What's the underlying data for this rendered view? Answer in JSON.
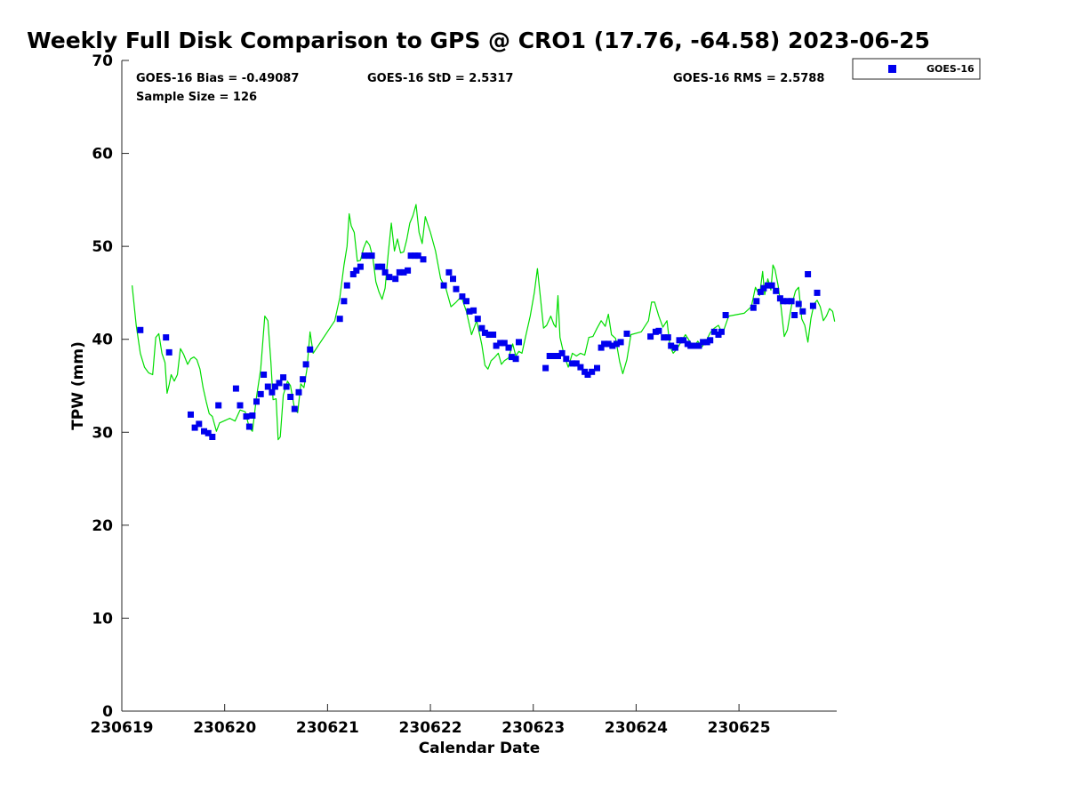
{
  "chart_data": {
    "type": "scatter",
    "title": "Weekly Full Disk Comparison to GPS @ CRO1 (17.76, -64.58) 2023-06-25",
    "xlabel": "Calendar Date",
    "ylabel": "TPW (mm)",
    "xlim": [
      0,
      6.95
    ],
    "ylim": [
      0,
      70
    ],
    "x_tick_labels": [
      "230619",
      "230620",
      "230621",
      "230622",
      "230623",
      "230624",
      "230625"
    ],
    "y_ticks": [
      0,
      10,
      20,
      30,
      40,
      50,
      60,
      70
    ],
    "grid": false,
    "legend_position": "top-right",
    "stats": {
      "bias": "GOES-16 Bias = -0.49087",
      "std": "GOES-16 StD = 2.5317",
      "rms": "GOES-16 RMS = 2.5788",
      "sample": "Sample Size = 126"
    },
    "series": [
      {
        "name": "GOES-16",
        "kind": "markers",
        "color": "#0000ee",
        "points": [
          [
            0.18,
            41
          ],
          [
            0.43,
            40.2
          ],
          [
            0.46,
            38.6
          ],
          [
            0.67,
            31.9
          ],
          [
            0.71,
            30.5
          ],
          [
            0.75,
            30.9
          ],
          [
            0.8,
            30.1
          ],
          [
            0.84,
            29.9
          ],
          [
            0.88,
            29.5
          ],
          [
            0.94,
            32.9
          ],
          [
            1.11,
            34.7
          ],
          [
            1.15,
            32.9
          ],
          [
            1.21,
            31.7
          ],
          [
            1.24,
            30.6
          ],
          [
            1.27,
            31.8
          ],
          [
            1.31,
            33.3
          ],
          [
            1.35,
            34.1
          ],
          [
            1.38,
            36.2
          ],
          [
            1.42,
            34.9
          ],
          [
            1.46,
            34.3
          ],
          [
            1.49,
            34.9
          ],
          [
            1.53,
            35.3
          ],
          [
            1.57,
            35.9
          ],
          [
            1.6,
            34.9
          ],
          [
            1.64,
            33.8
          ],
          [
            1.68,
            32.5
          ],
          [
            1.72,
            34.3
          ],
          [
            1.76,
            35.7
          ],
          [
            1.79,
            37.3
          ],
          [
            1.83,
            38.9
          ],
          [
            2.12,
            42.2
          ],
          [
            2.16,
            44.1
          ],
          [
            2.19,
            45.8
          ],
          [
            2.25,
            47
          ],
          [
            2.28,
            47.4
          ],
          [
            2.32,
            47.8
          ],
          [
            2.36,
            49
          ],
          [
            2.4,
            49
          ],
          [
            2.43,
            49
          ],
          [
            2.49,
            47.8
          ],
          [
            2.53,
            47.8
          ],
          [
            2.56,
            47.2
          ],
          [
            2.6,
            46.7
          ],
          [
            2.66,
            46.5
          ],
          [
            2.7,
            47.2
          ],
          [
            2.74,
            47.2
          ],
          [
            2.78,
            47.4
          ],
          [
            2.81,
            49
          ],
          [
            2.85,
            49
          ],
          [
            2.88,
            49
          ],
          [
            2.93,
            48.6
          ],
          [
            3.13,
            45.8
          ],
          [
            3.18,
            47.2
          ],
          [
            3.22,
            46.5
          ],
          [
            3.25,
            45.4
          ],
          [
            3.31,
            44.6
          ],
          [
            3.35,
            44.1
          ],
          [
            3.38,
            43
          ],
          [
            3.42,
            43.1
          ],
          [
            3.46,
            42.2
          ],
          [
            3.5,
            41.2
          ],
          [
            3.53,
            40.7
          ],
          [
            3.57,
            40.5
          ],
          [
            3.61,
            40.5
          ],
          [
            3.64,
            39.3
          ],
          [
            3.68,
            39.6
          ],
          [
            3.72,
            39.6
          ],
          [
            3.76,
            39.1
          ],
          [
            3.79,
            38.1
          ],
          [
            3.83,
            37.9
          ],
          [
            3.86,
            39.7
          ],
          [
            4.12,
            36.9
          ],
          [
            4.16,
            38.2
          ],
          [
            4.2,
            38.2
          ],
          [
            4.24,
            38.2
          ],
          [
            4.28,
            38.5
          ],
          [
            4.32,
            37.9
          ],
          [
            4.38,
            37.4
          ],
          [
            4.42,
            37.4
          ],
          [
            4.46,
            37
          ],
          [
            4.5,
            36.5
          ],
          [
            4.53,
            36.2
          ],
          [
            4.57,
            36.5
          ],
          [
            4.62,
            36.9
          ],
          [
            4.66,
            39.1
          ],
          [
            4.69,
            39.5
          ],
          [
            4.73,
            39.5
          ],
          [
            4.77,
            39.3
          ],
          [
            4.81,
            39.5
          ],
          [
            4.85,
            39.7
          ],
          [
            4.91,
            40.6
          ],
          [
            5.14,
            40.3
          ],
          [
            5.19,
            40.8
          ],
          [
            5.22,
            40.9
          ],
          [
            5.27,
            40.2
          ],
          [
            5.31,
            40.2
          ],
          [
            5.34,
            39.3
          ],
          [
            5.38,
            39.1
          ],
          [
            5.42,
            39.9
          ],
          [
            5.46,
            39.9
          ],
          [
            5.5,
            39.5
          ],
          [
            5.53,
            39.3
          ],
          [
            5.57,
            39.3
          ],
          [
            5.61,
            39.3
          ],
          [
            5.65,
            39.7
          ],
          [
            5.69,
            39.7
          ],
          [
            5.72,
            39.9
          ],
          [
            5.76,
            40.8
          ],
          [
            5.8,
            40.5
          ],
          [
            5.83,
            40.8
          ],
          [
            5.87,
            42.6
          ],
          [
            6.14,
            43.4
          ],
          [
            6.17,
            44.1
          ],
          [
            6.21,
            45.1
          ],
          [
            6.24,
            45.5
          ],
          [
            6.28,
            45.8
          ],
          [
            6.32,
            45.8
          ],
          [
            6.36,
            45.2
          ],
          [
            6.4,
            44.4
          ],
          [
            6.43,
            44.1
          ],
          [
            6.47,
            44.1
          ],
          [
            6.51,
            44.1
          ],
          [
            6.54,
            42.6
          ],
          [
            6.58,
            43.8
          ],
          [
            6.62,
            43
          ],
          [
            6.67,
            47
          ],
          [
            6.72,
            43.6
          ],
          [
            6.76,
            45
          ]
        ]
      },
      {
        "name": "GPS",
        "kind": "line",
        "color": "#00dd00",
        "points": [
          [
            0.1,
            45.8
          ],
          [
            0.14,
            41.5
          ],
          [
            0.18,
            38.5
          ],
          [
            0.22,
            37
          ],
          [
            0.26,
            36.4
          ],
          [
            0.3,
            36.2
          ],
          [
            0.33,
            40.2
          ],
          [
            0.36,
            40.6
          ],
          [
            0.39,
            38.5
          ],
          [
            0.42,
            37.5
          ],
          [
            0.44,
            34.2
          ],
          [
            0.46,
            35.1
          ],
          [
            0.48,
            36.2
          ],
          [
            0.51,
            35.5
          ],
          [
            0.54,
            36.2
          ],
          [
            0.57,
            39
          ],
          [
            0.6,
            38.4
          ],
          [
            0.64,
            37.3
          ],
          [
            0.67,
            37.9
          ],
          [
            0.7,
            38.1
          ],
          [
            0.73,
            37.8
          ],
          [
            0.76,
            36.8
          ],
          [
            0.79,
            34.8
          ],
          [
            0.82,
            33.3
          ],
          [
            0.85,
            32
          ],
          [
            0.88,
            31.7
          ],
          [
            0.92,
            30.1
          ],
          [
            0.95,
            31
          ],
          [
            1.05,
            31.5
          ],
          [
            1.1,
            31.2
          ],
          [
            1.15,
            32.4
          ],
          [
            1.2,
            32.2
          ],
          [
            1.24,
            30.5
          ],
          [
            1.27,
            30.1
          ],
          [
            1.31,
            33.8
          ],
          [
            1.35,
            36.8
          ],
          [
            1.39,
            42.5
          ],
          [
            1.42,
            42
          ],
          [
            1.45,
            37.5
          ],
          [
            1.47,
            33.5
          ],
          [
            1.5,
            33.6
          ],
          [
            1.52,
            29.2
          ],
          [
            1.54,
            29.5
          ],
          [
            1.57,
            34
          ],
          [
            1.61,
            35.5
          ],
          [
            1.64,
            35
          ],
          [
            1.68,
            32.5
          ],
          [
            1.71,
            32.1
          ],
          [
            1.74,
            35.2
          ],
          [
            1.77,
            34.8
          ],
          [
            1.8,
            36.8
          ],
          [
            1.83,
            40.8
          ],
          [
            1.86,
            38.5
          ],
          [
            2.07,
            42
          ],
          [
            2.12,
            44.5
          ],
          [
            2.16,
            48
          ],
          [
            2.19,
            50
          ],
          [
            2.21,
            53.5
          ],
          [
            2.23,
            52.2
          ],
          [
            2.26,
            51.5
          ],
          [
            2.29,
            48.4
          ],
          [
            2.32,
            48.5
          ],
          [
            2.35,
            49.8
          ],
          [
            2.38,
            50.6
          ],
          [
            2.41,
            50.1
          ],
          [
            2.44,
            48.8
          ],
          [
            2.47,
            46.2
          ],
          [
            2.5,
            45.1
          ],
          [
            2.53,
            44.3
          ],
          [
            2.56,
            45.5
          ],
          [
            2.59,
            49.2
          ],
          [
            2.62,
            52.5
          ],
          [
            2.65,
            49.5
          ],
          [
            2.68,
            50.8
          ],
          [
            2.71,
            49.3
          ],
          [
            2.74,
            49.4
          ],
          [
            2.77,
            50.7
          ],
          [
            2.8,
            52.5
          ],
          [
            2.83,
            53.3
          ],
          [
            2.86,
            54.5
          ],
          [
            2.89,
            51.5
          ],
          [
            2.92,
            50.3
          ],
          [
            2.95,
            53.2
          ],
          [
            3.0,
            51.5
          ],
          [
            3.05,
            49.5
          ],
          [
            3.1,
            46.5
          ],
          [
            3.15,
            45.5
          ],
          [
            3.2,
            43.5
          ],
          [
            3.25,
            44
          ],
          [
            3.3,
            44.6
          ],
          [
            3.35,
            43
          ],
          [
            3.4,
            40.5
          ],
          [
            3.45,
            42
          ],
          [
            3.5,
            39.4
          ],
          [
            3.53,
            37.2
          ],
          [
            3.56,
            36.8
          ],
          [
            3.59,
            37.7
          ],
          [
            3.62,
            38
          ],
          [
            3.66,
            38.5
          ],
          [
            3.69,
            37.3
          ],
          [
            3.72,
            37.7
          ],
          [
            3.76,
            38
          ],
          [
            3.8,
            39.5
          ],
          [
            3.83,
            38.2
          ],
          [
            3.86,
            38.7
          ],
          [
            3.89,
            38.5
          ],
          [
            3.93,
            40.5
          ],
          [
            3.97,
            42.5
          ],
          [
            4.01,
            45
          ],
          [
            4.04,
            47.6
          ],
          [
            4.07,
            44.5
          ],
          [
            4.1,
            41.2
          ],
          [
            4.13,
            41.5
          ],
          [
            4.17,
            42.5
          ],
          [
            4.2,
            41.6
          ],
          [
            4.22,
            41.3
          ],
          [
            4.24,
            44.7
          ],
          [
            4.26,
            40.2
          ],
          [
            4.3,
            38.3
          ],
          [
            4.34,
            37
          ],
          [
            4.38,
            38.5
          ],
          [
            4.42,
            38.2
          ],
          [
            4.46,
            38.5
          ],
          [
            4.5,
            38.3
          ],
          [
            4.54,
            40.2
          ],
          [
            4.58,
            40.3
          ],
          [
            4.62,
            41.2
          ],
          [
            4.66,
            42
          ],
          [
            4.7,
            41.4
          ],
          [
            4.73,
            42.7
          ],
          [
            4.76,
            40.5
          ],
          [
            4.8,
            40.1
          ],
          [
            4.84,
            37.6
          ],
          [
            4.87,
            36.3
          ],
          [
            4.91,
            37.8
          ],
          [
            4.95,
            40.5
          ],
          [
            5.05,
            40.8
          ],
          [
            5.12,
            42
          ],
          [
            5.15,
            44
          ],
          [
            5.18,
            44
          ],
          [
            5.22,
            42.5
          ],
          [
            5.26,
            41.3
          ],
          [
            5.3,
            42
          ],
          [
            5.33,
            39.2
          ],
          [
            5.36,
            38.5
          ],
          [
            5.4,
            39
          ],
          [
            5.44,
            39.8
          ],
          [
            5.48,
            40.5
          ],
          [
            5.52,
            39.8
          ],
          [
            5.56,
            39.2
          ],
          [
            5.6,
            39.8
          ],
          [
            5.64,
            39.2
          ],
          [
            5.68,
            39.8
          ],
          [
            5.72,
            40.7
          ],
          [
            5.76,
            41.2
          ],
          [
            5.8,
            41.5
          ],
          [
            5.84,
            40.6
          ],
          [
            5.9,
            42.5
          ],
          [
            6.05,
            42.8
          ],
          [
            6.12,
            43.5
          ],
          [
            6.16,
            45.6
          ],
          [
            6.2,
            44.7
          ],
          [
            6.23,
            47.3
          ],
          [
            6.25,
            44.8
          ],
          [
            6.28,
            46.5
          ],
          [
            6.31,
            45.3
          ],
          [
            6.33,
            48
          ],
          [
            6.35,
            47.5
          ],
          [
            6.38,
            45.8
          ],
          [
            6.41,
            43.4
          ],
          [
            6.44,
            40.3
          ],
          [
            6.47,
            41
          ],
          [
            6.51,
            43.6
          ],
          [
            6.55,
            45.2
          ],
          [
            6.58,
            45.6
          ],
          [
            6.61,
            42.2
          ],
          [
            6.64,
            41.5
          ],
          [
            6.67,
            39.7
          ],
          [
            6.7,
            42.3
          ],
          [
            6.73,
            43.8
          ],
          [
            6.76,
            44.2
          ],
          [
            6.79,
            43.5
          ],
          [
            6.82,
            42
          ],
          [
            6.85,
            42.5
          ],
          [
            6.88,
            43.3
          ],
          [
            6.91,
            43
          ],
          [
            6.93,
            41.9
          ]
        ]
      }
    ]
  }
}
